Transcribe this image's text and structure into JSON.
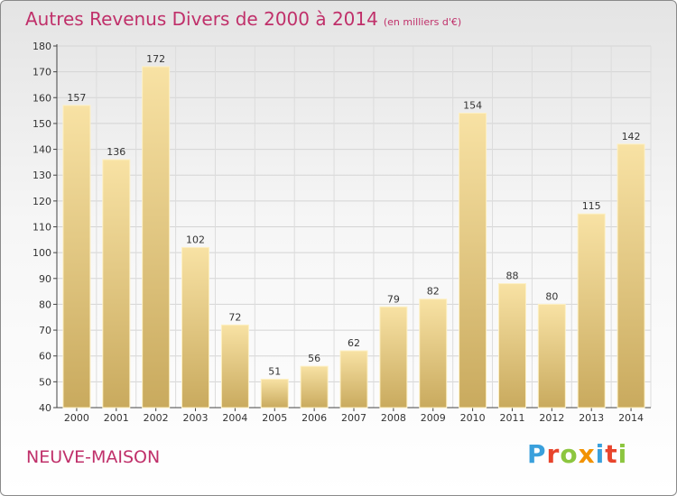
{
  "title": "Autres Revenus Divers de 2000 à 2014",
  "subtitle": "(en milliers d'€)",
  "footer": {
    "place": "NEUVE-MAISON"
  },
  "logo": {
    "text": "Proxiti",
    "letters": [
      "P",
      "r",
      "o",
      "x",
      "i",
      "t",
      "i"
    ],
    "colors": [
      "#3aa0dc",
      "#e8442c",
      "#8cc63f",
      "#f29200",
      "#3aa0dc",
      "#e8442c",
      "#8cc63f"
    ]
  },
  "colors": {
    "bar_top": "#f8e2a4",
    "bar_bottom": "#c9aa5e",
    "bar_edge": "#fdf0c4",
    "title": "#c0306a"
  },
  "chart_data": {
    "type": "bar",
    "title": "Autres Revenus Divers de 2000 à 2014",
    "subtitle": "(en milliers d'€)",
    "xlabel": "",
    "ylabel": "",
    "categories": [
      "2000",
      "2001",
      "2002",
      "2003",
      "2004",
      "2005",
      "2006",
      "2007",
      "2008",
      "2009",
      "2010",
      "2011",
      "2012",
      "2013",
      "2014"
    ],
    "values": [
      157,
      136,
      172,
      102,
      72,
      51,
      56,
      62,
      79,
      82,
      154,
      88,
      80,
      115,
      142
    ],
    "ylim": [
      40,
      180
    ],
    "yticks": [
      40,
      50,
      60,
      70,
      80,
      90,
      100,
      110,
      120,
      130,
      140,
      150,
      160,
      170,
      180
    ],
    "grid": true
  }
}
